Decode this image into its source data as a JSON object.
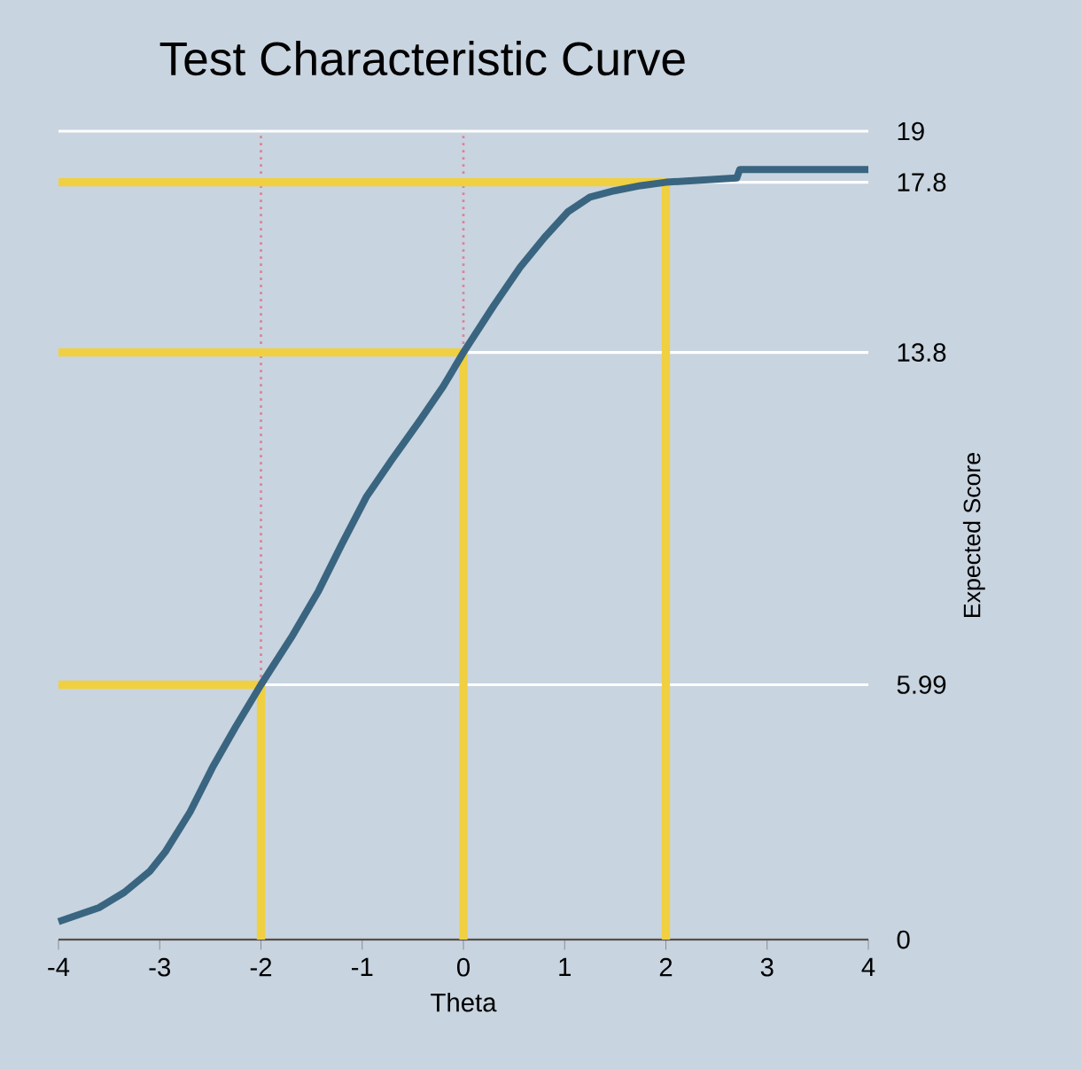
{
  "chart_data": {
    "type": "line",
    "title": "Test Characteristic Curve",
    "xlabel": "Theta",
    "ylabel": "Expected Score",
    "xlim": [
      -4,
      4
    ],
    "ylim": [
      0,
      19
    ],
    "xticks": [
      -4,
      -3,
      -2,
      -1,
      0,
      1,
      2,
      3,
      4
    ],
    "yticks": [
      0,
      5.99,
      13.8,
      17.8,
      19
    ],
    "grid": "y",
    "series": [
      {
        "color": "#f0d040",
        "x": [
          -4,
          -2,
          -2
        ],
        "values": [
          5.99,
          5.99,
          0
        ]
      },
      {
        "color": "#f0d040",
        "x": [
          -4,
          0,
          0
        ],
        "values": [
          13.8,
          13.8,
          0
        ]
      },
      {
        "color": "#f0d040",
        "x": [
          -4,
          2,
          2
        ],
        "values": [
          17.8,
          17.8,
          0
        ]
      },
      {
        "color": "#3a6580",
        "x": [
          -4,
          -3.6,
          -3.35,
          -3.1,
          -2.94,
          -2.7,
          -2.48,
          -2.25,
          -2,
          -1.7,
          -1.43,
          -1.2,
          -0.96,
          -0.7,
          -0.43,
          -0.2,
          0,
          0.3,
          0.56,
          0.8,
          1.03,
          1.25,
          1.49,
          1.75,
          2,
          2.7,
          2.73,
          4
        ],
        "values": [
          0.42,
          0.75,
          1.11,
          1.6,
          2.08,
          3.0,
          4.04,
          5.0,
          5.99,
          7.1,
          8.2,
          9.3,
          10.4,
          11.3,
          12.2,
          13.0,
          13.8,
          14.9,
          15.8,
          16.5,
          17.1,
          17.45,
          17.6,
          17.72,
          17.8,
          17.9,
          18.1,
          18.1
        ]
      }
    ],
    "ref_lines": [
      {
        "axis": "x",
        "value": -2,
        "color": "#e08090",
        "line_style": "dotted"
      },
      {
        "axis": "x",
        "value": 0,
        "color": "#e08090",
        "line_style": "dotted"
      }
    ]
  }
}
